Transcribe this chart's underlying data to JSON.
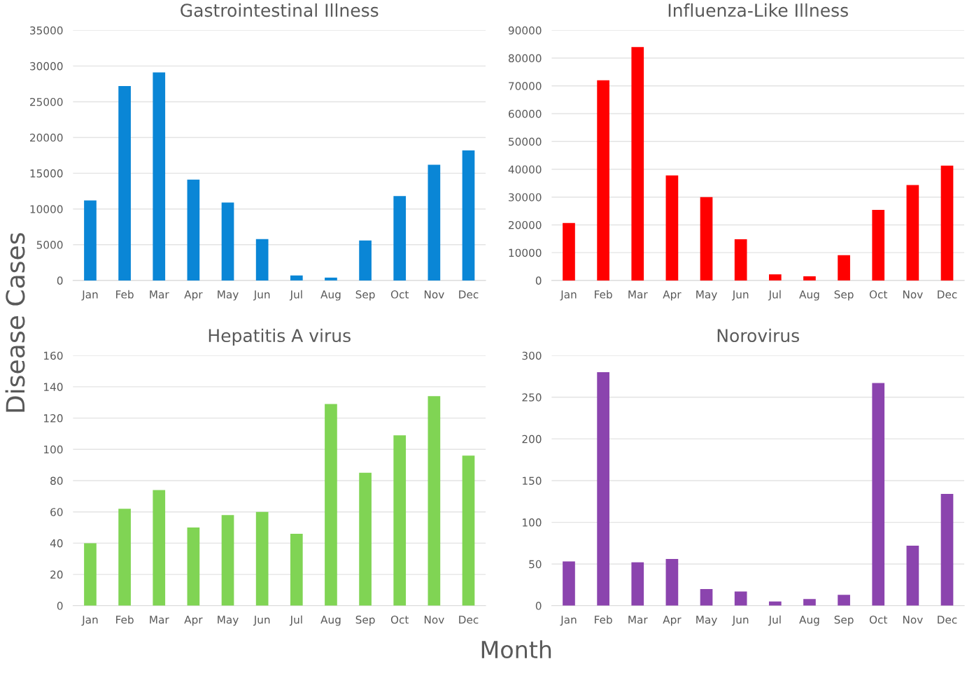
{
  "chart_data": [
    {
      "type": "bar",
      "title": "Gastrointestinal Illness",
      "ylabel": "Disease Cases",
      "categories": [
        "Jan",
        "Feb",
        "Mar",
        "Apr",
        "May",
        "Jun",
        "Jul",
        "Aug",
        "Sep",
        "Oct",
        "Nov",
        "Dec"
      ],
      "values": [
        11200,
        27200,
        29100,
        14100,
        10900,
        5800,
        700,
        400,
        5600,
        11800,
        16200,
        18200
      ],
      "color": "#0a86d6",
      "ylim": [
        0,
        35000
      ],
      "yticks": [
        0,
        5000,
        10000,
        15000,
        20000,
        25000,
        30000,
        35000
      ],
      "grid": "y"
    },
    {
      "type": "bar",
      "title": "Influenza-Like Illness",
      "categories": [
        "Jan",
        "Feb",
        "Mar",
        "Apr",
        "May",
        "Jun",
        "Jul",
        "Aug",
        "Sep",
        "Oct",
        "Nov",
        "Dec"
      ],
      "values": [
        20700,
        72000,
        84000,
        37800,
        30000,
        14800,
        2200,
        1500,
        9100,
        25400,
        34300,
        41300
      ],
      "color": "#ff0000",
      "ylim": [
        0,
        90000
      ],
      "yticks": [
        0,
        10000,
        20000,
        30000,
        40000,
        50000,
        60000,
        70000,
        80000,
        90000
      ],
      "grid": "y"
    },
    {
      "type": "bar",
      "title": "Hepatitis A virus",
      "categories": [
        "Jan",
        "Feb",
        "Mar",
        "Apr",
        "May",
        "Jun",
        "Jul",
        "Aug",
        "Sep",
        "Oct",
        "Nov",
        "Dec"
      ],
      "values": [
        40,
        62,
        74,
        50,
        58,
        60,
        46,
        129,
        85,
        109,
        134,
        96
      ],
      "color": "#80d454",
      "ylim": [
        0,
        160
      ],
      "yticks": [
        0,
        20,
        40,
        60,
        80,
        100,
        120,
        140,
        160
      ],
      "grid": "y"
    },
    {
      "type": "bar",
      "title": "Norovirus",
      "xlabel": "Month",
      "categories": [
        "Jan",
        "Feb",
        "Mar",
        "Apr",
        "May",
        "Jun",
        "Jul",
        "Aug",
        "Sep",
        "Oct",
        "Nov",
        "Dec"
      ],
      "values": [
        53,
        280,
        52,
        56,
        20,
        17,
        5,
        8,
        13,
        267,
        72,
        134
      ],
      "color": "#8b44ae",
      "ylim": [
        0,
        300
      ],
      "yticks": [
        0,
        50,
        100,
        150,
        200,
        250,
        300
      ],
      "grid": "y"
    }
  ]
}
